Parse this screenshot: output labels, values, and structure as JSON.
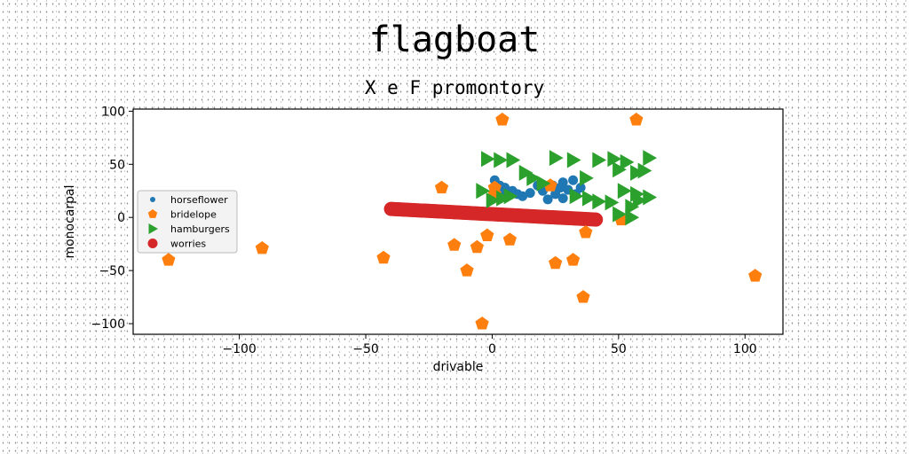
{
  "chart_data": {
    "type": "scatter",
    "title": "flagboat",
    "subtitle": "X e F promontory",
    "xlabel": "drivable",
    "ylabel": "monocarpal",
    "xlim": [
      -142,
      115
    ],
    "ylim": [
      -110,
      102
    ],
    "xticks": [
      -100,
      -50,
      0,
      50,
      100
    ],
    "yticks": [
      100,
      50,
      0,
      -50,
      -100
    ],
    "grid": false,
    "legend_position": "center-left",
    "series": [
      {
        "name": "horseflower",
        "marker": "circle",
        "color": "#1f77b4",
        "points": [
          [
            1,
            35
          ],
          [
            3,
            30
          ],
          [
            5,
            28
          ],
          [
            8,
            25
          ],
          [
            12,
            20
          ],
          [
            15,
            23
          ],
          [
            18,
            30
          ],
          [
            20,
            25
          ],
          [
            24,
            30
          ],
          [
            25,
            22
          ],
          [
            27,
            28
          ],
          [
            28,
            33
          ],
          [
            30,
            26
          ],
          [
            32,
            35
          ],
          [
            35,
            28
          ],
          [
            33,
            22
          ],
          [
            28,
            18
          ],
          [
            22,
            17
          ],
          [
            10,
            22
          ],
          [
            4,
            24
          ]
        ]
      },
      {
        "name": "bridelope",
        "marker": "pentagon",
        "color": "#ff7f0e",
        "points": [
          [
            4,
            92
          ],
          [
            57,
            92
          ],
          [
            -20,
            28
          ],
          [
            1,
            28
          ],
          [
            1,
            22
          ],
          [
            23,
            30
          ],
          [
            -128,
            -40
          ],
          [
            -91,
            -29
          ],
          [
            -43,
            -38
          ],
          [
            -15,
            -26
          ],
          [
            -2,
            -17
          ],
          [
            -6,
            -28
          ],
          [
            7,
            -21
          ],
          [
            -10,
            -50
          ],
          [
            -4,
            -100
          ],
          [
            25,
            -43
          ],
          [
            32,
            -40
          ],
          [
            37,
            -14
          ],
          [
            36,
            -75
          ],
          [
            51,
            -2
          ],
          [
            104,
            -55
          ]
        ]
      },
      {
        "name": "hamburgers",
        "marker": "triangle-right",
        "color": "#2ca02c",
        "points": [
          [
            -2,
            55
          ],
          [
            3,
            54
          ],
          [
            8,
            54
          ],
          [
            25,
            56
          ],
          [
            32,
            54
          ],
          [
            42,
            54
          ],
          [
            48,
            55
          ],
          [
            53,
            52
          ],
          [
            62,
            56
          ],
          [
            50,
            45
          ],
          [
            57,
            42
          ],
          [
            60,
            44
          ],
          [
            13,
            42
          ],
          [
            16,
            37
          ],
          [
            20,
            32
          ],
          [
            37,
            37
          ],
          [
            -4,
            25
          ],
          [
            7,
            20
          ],
          [
            0,
            16
          ],
          [
            4,
            18
          ],
          [
            33,
            20
          ],
          [
            38,
            18
          ],
          [
            42,
            15
          ],
          [
            47,
            14
          ],
          [
            55,
            10
          ],
          [
            57,
            22
          ],
          [
            62,
            19
          ],
          [
            52,
            25
          ],
          [
            58,
            16
          ],
          [
            50,
            3
          ],
          [
            55,
            0
          ]
        ]
      },
      {
        "name": "worries",
        "marker": "circle",
        "color": "#d62728",
        "line_from": [
          -40,
          8
        ],
        "line_to": [
          41,
          -2
        ],
        "count": 100
      }
    ]
  }
}
